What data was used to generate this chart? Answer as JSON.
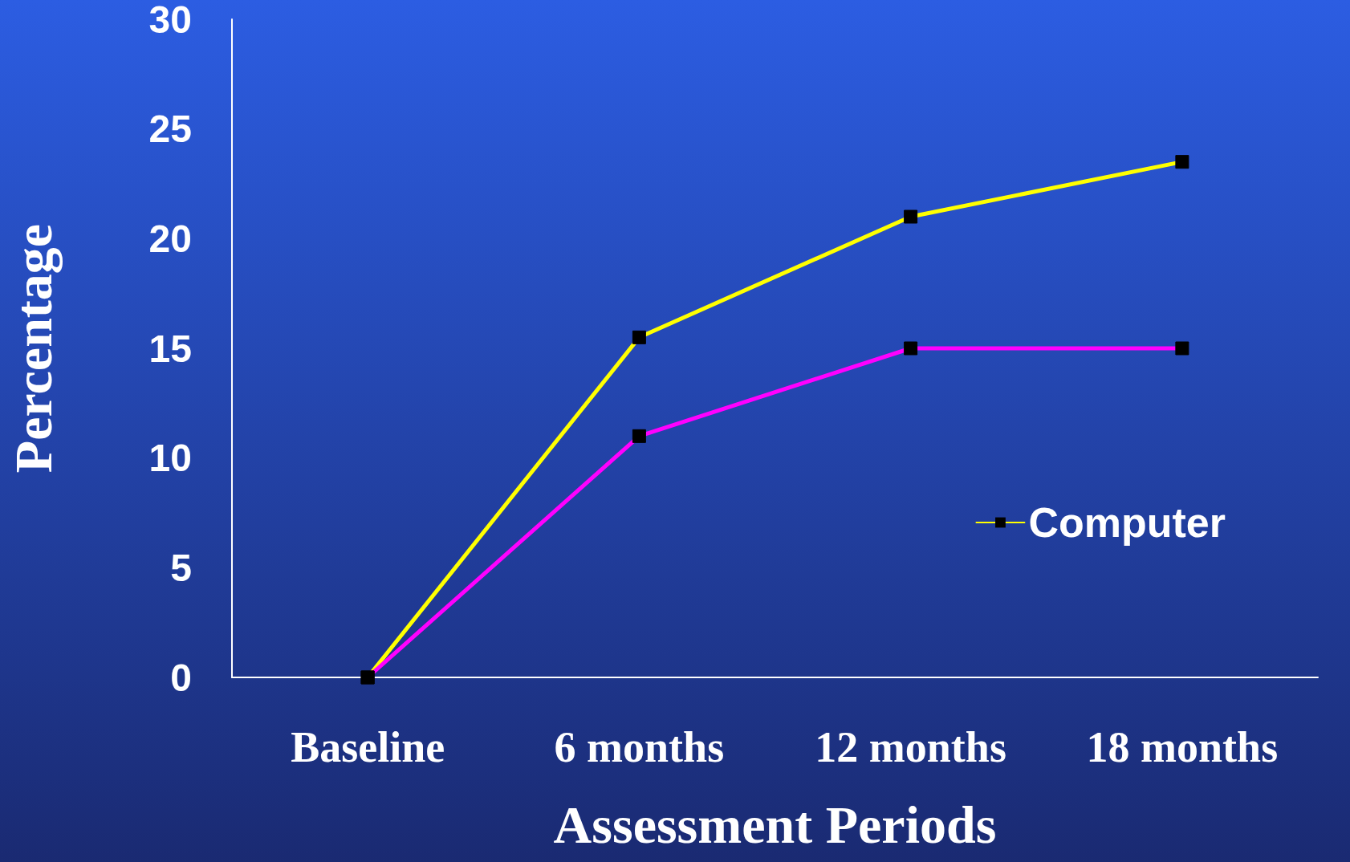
{
  "chart_data": {
    "type": "line",
    "xlabel": "Assessment Periods",
    "ylabel": "Percentage",
    "categories": [
      "Baseline",
      "6 months",
      "12 months",
      "18 months"
    ],
    "series": [
      {
        "name": "Computer",
        "color": "#ffff00",
        "values": [
          0,
          15.5,
          21,
          23.5
        ]
      },
      {
        "color": "#ff00ff",
        "values": [
          0,
          11,
          15,
          15
        ]
      }
    ],
    "ylim": [
      0,
      30
    ],
    "yticks": [
      0,
      5,
      10,
      15,
      20,
      25,
      30
    ],
    "grid": false,
    "legend": "right",
    "marker": "square",
    "line_style": "solid"
  }
}
